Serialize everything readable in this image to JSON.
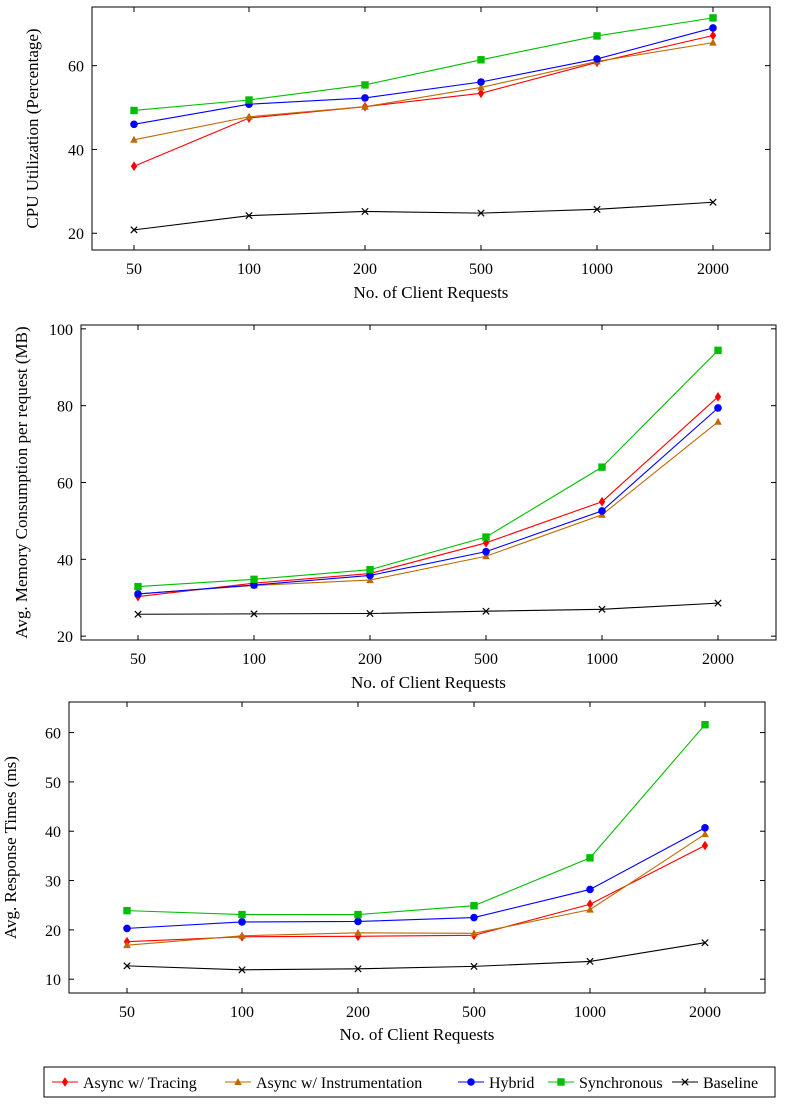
{
  "legend": {
    "placement": "bottom",
    "items": [
      {
        "label": "Async w/ Tracing",
        "color": "#ff0000",
        "marker": "diamond"
      },
      {
        "label": "Async w/ Instrumentation",
        "color": "#bf6a00",
        "marker": "triangle"
      },
      {
        "label": "Hybrid",
        "color": "#0000ff",
        "marker": "circle"
      },
      {
        "label": "Synchronous",
        "color": "#00bf00",
        "marker": "square"
      },
      {
        "label": "Baseline",
        "color": "#000000",
        "marker": "x"
      }
    ]
  },
  "chart_data": [
    {
      "type": "line",
      "title": "",
      "xlabel": "No. of Client Requests",
      "ylabel": "CPU Utilization (Percentage)",
      "categories": [
        "50",
        "100",
        "200",
        "500",
        "1000",
        "2000"
      ],
      "ylim": [
        16,
        74
      ],
      "yticks": [
        20,
        40,
        60
      ],
      "grid": false,
      "series": [
        {
          "name": "Async w/ Tracing",
          "color": "#ff0000",
          "marker": "diamond",
          "values": [
            36.0,
            47.5,
            50.2,
            53.4,
            60.8,
            67.2
          ]
        },
        {
          "name": "Async w/ Instrumentation",
          "color": "#bf6a00",
          "marker": "triangle",
          "values": [
            42.3,
            47.8,
            50.2,
            54.8,
            61.0,
            65.5
          ]
        },
        {
          "name": "Hybrid",
          "color": "#0000ff",
          "marker": "circle",
          "values": [
            46.0,
            50.8,
            52.3,
            56.1,
            61.6,
            69.0
          ]
        },
        {
          "name": "Synchronous",
          "color": "#00bf00",
          "marker": "square",
          "values": [
            49.3,
            51.8,
            55.4,
            61.4,
            67.1,
            71.4
          ]
        },
        {
          "name": "Baseline",
          "color": "#000000",
          "marker": "x",
          "values": [
            20.8,
            24.2,
            25.2,
            24.8,
            25.7,
            27.4
          ]
        }
      ]
    },
    {
      "type": "line",
      "title": "",
      "xlabel": "No. of Client Requests",
      "ylabel": "Avg. Memory Consumption per request (MB)",
      "categories": [
        "50",
        "100",
        "200",
        "500",
        "1000",
        "2000"
      ],
      "ylim": [
        19,
        101
      ],
      "yticks": [
        20,
        40,
        60,
        80,
        100
      ],
      "grid": false,
      "series": [
        {
          "name": "Async w/ Tracing",
          "color": "#ff0000",
          "marker": "diamond",
          "values": [
            30.3,
            33.8,
            36.3,
            44.3,
            55.0,
            82.3
          ]
        },
        {
          "name": "Async w/ Instrumentation",
          "color": "#bf6a00",
          "marker": "triangle",
          "values": [
            31.0,
            33.2,
            34.6,
            40.8,
            51.6,
            75.8
          ]
        },
        {
          "name": "Hybrid",
          "color": "#0000ff",
          "marker": "circle",
          "values": [
            31.0,
            33.3,
            35.8,
            42.0,
            52.6,
            79.4
          ]
        },
        {
          "name": "Synchronous",
          "color": "#00bf00",
          "marker": "square",
          "values": [
            32.9,
            34.8,
            37.3,
            45.8,
            64.0,
            94.4
          ]
        },
        {
          "name": "Baseline",
          "color": "#000000",
          "marker": "x",
          "values": [
            25.7,
            25.8,
            25.9,
            26.5,
            27.0,
            28.6
          ]
        }
      ]
    },
    {
      "type": "line",
      "title": "",
      "xlabel": "No. of Client Requests",
      "ylabel": "Avg. Response Times (ms)",
      "categories": [
        "50",
        "100",
        "200",
        "500",
        "1000",
        "2000"
      ],
      "ylim": [
        7.2,
        66.2
      ],
      "yticks": [
        10,
        20,
        30,
        40,
        50,
        60
      ],
      "grid": false,
      "series": [
        {
          "name": "Async w/ Tracing",
          "color": "#ff0000",
          "marker": "diamond",
          "values": [
            17.6,
            18.6,
            18.7,
            18.9,
            25.2,
            37.1
          ]
        },
        {
          "name": "Async w/ Instrumentation",
          "color": "#bf6a00",
          "marker": "triangle",
          "values": [
            16.9,
            18.8,
            19.4,
            19.3,
            24.1,
            39.4
          ]
        },
        {
          "name": "Hybrid",
          "color": "#0000ff",
          "marker": "circle",
          "values": [
            20.3,
            21.6,
            21.7,
            22.5,
            28.2,
            40.7
          ]
        },
        {
          "name": "Synchronous",
          "color": "#00bf00",
          "marker": "square",
          "values": [
            23.9,
            23.1,
            23.1,
            24.9,
            34.6,
            61.6
          ]
        },
        {
          "name": "Baseline",
          "color": "#000000",
          "marker": "x",
          "values": [
            12.7,
            11.9,
            12.1,
            12.6,
            13.6,
            17.4
          ]
        }
      ]
    }
  ]
}
